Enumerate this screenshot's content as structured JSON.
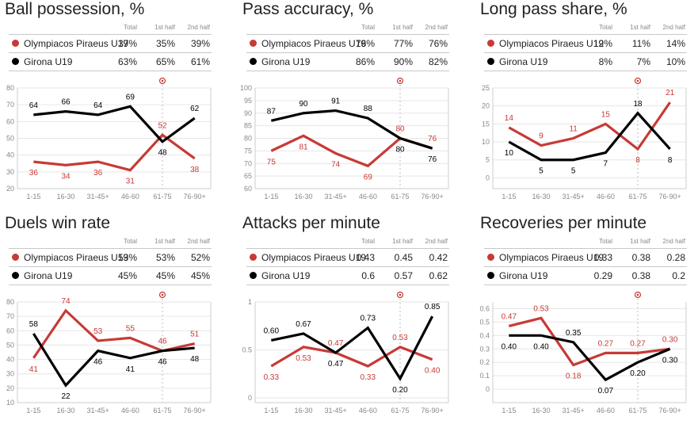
{
  "colors": {
    "team1": "#c73a36",
    "team2": "#000000",
    "grid": "#e6e6e6",
    "axis": "#cccccc"
  },
  "table_headers": [
    "Total",
    "1st half",
    "2nd half"
  ],
  "teams": [
    "Olympiacos Piraeus U19",
    "Girona U19"
  ],
  "goal_marker": {
    "icon": "soccer-ball-icon",
    "category": "61-75"
  },
  "chart_data": [
    {
      "type": "line",
      "title": "Ball possession, %",
      "categories": [
        "1-15",
        "16-30",
        "31-45+",
        "46-60",
        "61-75",
        "76-90+"
      ],
      "ylim": [
        20,
        80
      ],
      "yticks": [
        "20",
        "30",
        "40",
        "50",
        "60",
        "70",
        "80"
      ],
      "yticks_values": [
        20,
        30,
        40,
        50,
        60,
        70,
        80
      ],
      "grid": true,
      "table": [
        {
          "team": "Olympiacos Piraeus U19",
          "total": "37%",
          "first_half": "35%",
          "second_half": "39%"
        },
        {
          "team": "Girona U19",
          "total": "63%",
          "first_half": "65%",
          "second_half": "61%"
        }
      ],
      "series": [
        {
          "name": "Olympiacos Piraeus U19",
          "values": [
            36,
            34,
            36,
            31,
            52,
            38
          ],
          "labels": [
            "36",
            "34",
            "36",
            "31",
            "52",
            "38"
          ],
          "label_pos": [
            "below",
            "below",
            "below",
            "below",
            "above",
            "below"
          ]
        },
        {
          "name": "Girona U19",
          "values": [
            64,
            66,
            64,
            69,
            48,
            62
          ],
          "labels": [
            "64",
            "66",
            "64",
            "69",
            "48",
            "62"
          ],
          "label_pos": [
            "above",
            "above",
            "above",
            "above",
            "below",
            "above"
          ]
        }
      ]
    },
    {
      "type": "line",
      "title": "Pass accuracy, %",
      "categories": [
        "1-15",
        "16-30",
        "31-45+",
        "46-60",
        "61-75",
        "76-90+"
      ],
      "ylim": [
        60,
        100
      ],
      "yticks": [
        "60",
        "65",
        "70",
        "75",
        "80",
        "85",
        "90",
        "95",
        "100"
      ],
      "yticks_values": [
        60,
        65,
        70,
        75,
        80,
        85,
        90,
        95,
        100
      ],
      "grid": true,
      "table": [
        {
          "team": "Olympiacos Piraeus U19",
          "total": "76%",
          "first_half": "77%",
          "second_half": "76%"
        },
        {
          "team": "Girona U19",
          "total": "86%",
          "first_half": "90%",
          "second_half": "82%"
        }
      ],
      "series": [
        {
          "name": "Olympiacos Piraeus U19",
          "values": [
            75,
            81,
            74,
            69,
            80,
            76
          ],
          "labels": [
            "75",
            "81",
            "74",
            "69",
            "80",
            "76"
          ],
          "label_pos": [
            "below",
            "below",
            "below",
            "below",
            "above",
            "above"
          ]
        },
        {
          "name": "Girona U19",
          "values": [
            87,
            90,
            91,
            88,
            80,
            76
          ],
          "labels": [
            "87",
            "90",
            "91",
            "88",
            "80",
            "76"
          ],
          "label_pos": [
            "above",
            "above",
            "above",
            "above",
            "below",
            "below"
          ]
        }
      ]
    },
    {
      "type": "line",
      "title": "Long pass share, %",
      "categories": [
        "1-15",
        "16-30",
        "31-45+",
        "46-60",
        "61-75",
        "76-90+"
      ],
      "ylim": [
        -3,
        25
      ],
      "yticks": [
        "0",
        "5",
        "10",
        "15",
        "20",
        "25"
      ],
      "yticks_values": [
        0,
        5,
        10,
        15,
        20,
        25
      ],
      "grid": true,
      "table": [
        {
          "team": "Olympiacos Piraeus U19",
          "total": "12%",
          "first_half": "11%",
          "second_half": "14%"
        },
        {
          "team": "Girona U19",
          "total": "8%",
          "first_half": "7%",
          "second_half": "10%"
        }
      ],
      "series": [
        {
          "name": "Olympiacos Piraeus U19",
          "values": [
            14,
            9,
            11,
            15,
            8,
            21
          ],
          "labels": [
            "14",
            "9",
            "11",
            "15",
            "8",
            "21"
          ],
          "label_pos": [
            "above",
            "above",
            "above",
            "above",
            "below",
            "above"
          ]
        },
        {
          "name": "Girona U19",
          "values": [
            10,
            5,
            5,
            7,
            18,
            8
          ],
          "labels": [
            "10",
            "5",
            "5",
            "7",
            "18",
            "8"
          ],
          "label_pos": [
            "below",
            "below",
            "below",
            "below",
            "above",
            "below"
          ]
        }
      ]
    },
    {
      "type": "line",
      "title": "Duels win rate",
      "categories": [
        "1-15",
        "16-30",
        "31-45+",
        "46-60",
        "61-75",
        "76-90+"
      ],
      "ylim": [
        10,
        80
      ],
      "yticks": [
        "10",
        "20",
        "30",
        "40",
        "50",
        "60",
        "70",
        "80"
      ],
      "yticks_values": [
        10,
        20,
        30,
        40,
        50,
        60,
        70,
        80
      ],
      "grid": true,
      "table": [
        {
          "team": "Olympiacos Piraeus U19",
          "total": "53%",
          "first_half": "53%",
          "second_half": "52%"
        },
        {
          "team": "Girona U19",
          "total": "45%",
          "first_half": "45%",
          "second_half": "45%"
        }
      ],
      "series": [
        {
          "name": "Olympiacos Piraeus U19",
          "values": [
            41,
            74,
            53,
            55,
            46,
            51
          ],
          "labels": [
            "41",
            "74",
            "53",
            "55",
            "46",
            "51"
          ],
          "label_pos": [
            "below",
            "above",
            "above",
            "above",
            "above",
            "above"
          ]
        },
        {
          "name": "Girona U19",
          "values": [
            58,
            22,
            46,
            41,
            46,
            48
          ],
          "labels": [
            "58",
            "22",
            "46",
            "41",
            "46",
            "48"
          ],
          "label_pos": [
            "above",
            "below",
            "below",
            "below",
            "below",
            "below"
          ]
        }
      ]
    },
    {
      "type": "line",
      "title": "Attacks per minute",
      "categories": [
        "1-15",
        "16-30",
        "31-45+",
        "46-60",
        "61-75",
        "76-90+"
      ],
      "ylim": [
        -0.05,
        1
      ],
      "yticks": [
        "0",
        "0.5",
        "1"
      ],
      "yticks_values": [
        0,
        0.5,
        1
      ],
      "grid": true,
      "table": [
        {
          "team": "Olympiacos Piraeus U19",
          "total": "0.43",
          "first_half": "0.45",
          "second_half": "0.42"
        },
        {
          "team": "Girona U19",
          "total": "0.6",
          "first_half": "0.57",
          "second_half": "0.62"
        }
      ],
      "series": [
        {
          "name": "Olympiacos Piraeus U19",
          "values": [
            0.33,
            0.53,
            0.47,
            0.33,
            0.53,
            0.4
          ],
          "labels": [
            "0.33",
            "0.53",
            "0.47",
            "0.33",
            "0.53",
            "0.40"
          ],
          "label_pos": [
            "below",
            "below",
            "above",
            "below",
            "above",
            "below"
          ]
        },
        {
          "name": "Girona U19",
          "values": [
            0.6,
            0.67,
            0.47,
            0.73,
            0.2,
            0.85
          ],
          "labels": [
            "0.60",
            "0.67",
            "0.47",
            "0.73",
            "0.20",
            "0.85"
          ],
          "label_pos": [
            "above",
            "above",
            "below",
            "above",
            "below",
            "above"
          ]
        }
      ]
    },
    {
      "type": "line",
      "title": "Recoveries per minute",
      "categories": [
        "1-15",
        "16-30",
        "31-45+",
        "46-60",
        "61-75",
        "76-90+"
      ],
      "ylim": [
        -0.1,
        0.65
      ],
      "yticks": [
        "0",
        "0.1",
        "0.2",
        "0.3",
        "0.4",
        "0.5",
        "0.6"
      ],
      "yticks_values": [
        0,
        0.1,
        0.2,
        0.3,
        0.4,
        0.5,
        0.6
      ],
      "grid": true,
      "table": [
        {
          "team": "Olympiacos Piraeus U19",
          "total": "0.33",
          "first_half": "0.38",
          "second_half": "0.28"
        },
        {
          "team": "Girona U19",
          "total": "0.29",
          "first_half": "0.38",
          "second_half": "0.2"
        }
      ],
      "series": [
        {
          "name": "Olympiacos Piraeus U19",
          "values": [
            0.47,
            0.53,
            0.18,
            0.27,
            0.27,
            0.3
          ],
          "labels": [
            "0.47",
            "0.53",
            "0.18",
            "0.27",
            "0.27",
            "0.30"
          ],
          "label_pos": [
            "above",
            "above",
            "below",
            "above",
            "above",
            "above"
          ]
        },
        {
          "name": "Girona U19",
          "values": [
            0.4,
            0.4,
            0.35,
            0.07,
            0.2,
            0.3
          ],
          "labels": [
            "0.40",
            "0.40",
            "0.35",
            "0.07",
            "0.20",
            "0.30"
          ],
          "label_pos": [
            "below",
            "below",
            "above",
            "below",
            "below",
            "below"
          ]
        }
      ]
    }
  ]
}
